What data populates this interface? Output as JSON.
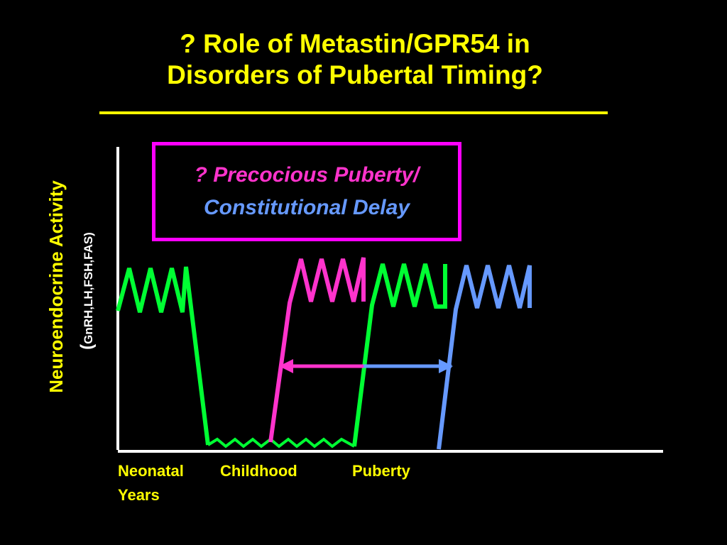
{
  "title": {
    "line1": "? Role of Metastin/GPR54 in",
    "line2": "Disorders of Pubertal Timing?"
  },
  "y_axis": {
    "label": "Neuroendocrine Activity",
    "sublabel": "GnRH,LH,FSH,FAS",
    "paren_open": "(",
    "paren_close": ")"
  },
  "legend": {
    "line1": "? Precocious Puberty/",
    "line2": "Constitutional Delay"
  },
  "x_axis": {
    "labels": [
      "Neonatal",
      "Childhood",
      "Puberty"
    ],
    "sub_label": "Years"
  },
  "colors": {
    "background": "#000000",
    "title": "#ffff00",
    "axis": "#ffffff",
    "normal_trace": "#00ff33",
    "precocious_trace": "#ff33cc",
    "delayed_trace": "#6699ff",
    "legend_border": "#ff00ff"
  }
}
